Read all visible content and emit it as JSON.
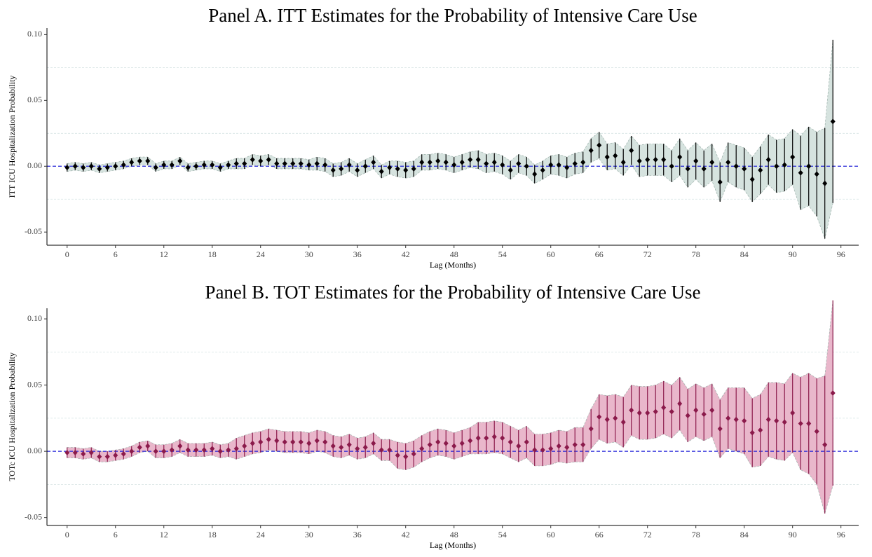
{
  "chart_data": [
    {
      "type": "errorbar",
      "title": "Panel A. ITT Estimates for the Probability of Intensive Care Use",
      "x_label": "Lag (Months)",
      "y_label": "ITT ICU Hospitalization Probability",
      "x": [
        0,
        1,
        2,
        3,
        4,
        5,
        6,
        7,
        8,
        9,
        10,
        11,
        12,
        13,
        14,
        15,
        16,
        17,
        18,
        19,
        20,
        21,
        22,
        23,
        24,
        25,
        26,
        27,
        28,
        29,
        30,
        31,
        32,
        33,
        34,
        35,
        36,
        37,
        38,
        39,
        40,
        41,
        42,
        43,
        44,
        45,
        46,
        47,
        48,
        49,
        50,
        51,
        52,
        53,
        54,
        55,
        56,
        57,
        58,
        59,
        60,
        61,
        62,
        63,
        64,
        65,
        66,
        67,
        68,
        69,
        70,
        71,
        72,
        73,
        74,
        75,
        76,
        77,
        78,
        79,
        80,
        81,
        82,
        83,
        84,
        85,
        86,
        87,
        88,
        89,
        90,
        91,
        92,
        93,
        94,
        95
      ],
      "values": [
        -0.001,
        0,
        -0.001,
        0,
        -0.002,
        -0.001,
        0,
        0.001,
        0.003,
        0.004,
        0.004,
        -0.001,
        0.001,
        0.001,
        0.004,
        -0.001,
        0,
        0.001,
        0.001,
        -0.001,
        0.001,
        0.002,
        0.002,
        0.005,
        0.004,
        0.005,
        0.002,
        0.002,
        0.002,
        0.002,
        0.001,
        0.002,
        0.001,
        -0.003,
        -0.002,
        0.001,
        -0.003,
        0,
        0.003,
        -0.004,
        -0.001,
        -0.002,
        -0.003,
        -0.002,
        0.003,
        0.003,
        0.004,
        0.003,
        0.001,
        0.003,
        0.005,
        0.005,
        0.002,
        0.003,
        0.001,
        -0.003,
        0.002,
        0,
        -0.006,
        -0.003,
        0.001,
        0.001,
        -0.001,
        0.002,
        0.003,
        0.012,
        0.016,
        0.007,
        0.008,
        0.003,
        0.012,
        0.004,
        0.005,
        0.005,
        0.005,
        0,
        0.007,
        -0.002,
        0.004,
        -0.002,
        0.003,
        -0.012,
        0.003,
        0,
        -0.002,
        -0.01,
        -0.003,
        0.005,
        0,
        0.001,
        0.007,
        -0.005,
        0,
        -0.006,
        -0.013,
        0.034
      ],
      "errors": [
        0.003,
        0.003,
        0.003,
        0.003,
        0.003,
        0.003,
        0.003,
        0.003,
        0.003,
        0.003,
        0.003,
        0.003,
        0.003,
        0.003,
        0.003,
        0.003,
        0.003,
        0.003,
        0.003,
        0.003,
        0.003,
        0.004,
        0.004,
        0.004,
        0.004,
        0.004,
        0.004,
        0.004,
        0.004,
        0.004,
        0.004,
        0.005,
        0.005,
        0.005,
        0.005,
        0.005,
        0.005,
        0.005,
        0.005,
        0.005,
        0.005,
        0.006,
        0.006,
        0.006,
        0.006,
        0.006,
        0.006,
        0.006,
        0.006,
        0.006,
        0.006,
        0.007,
        0.007,
        0.007,
        0.007,
        0.007,
        0.007,
        0.007,
        0.007,
        0.007,
        0.007,
        0.008,
        0.008,
        0.008,
        0.008,
        0.009,
        0.01,
        0.01,
        0.01,
        0.01,
        0.011,
        0.012,
        0.012,
        0.012,
        0.012,
        0.012,
        0.014,
        0.014,
        0.014,
        0.014,
        0.014,
        0.015,
        0.015,
        0.016,
        0.016,
        0.017,
        0.018,
        0.019,
        0.02,
        0.02,
        0.021,
        0.028,
        0.03,
        0.032,
        0.042,
        0.062
      ],
      "color": "#000000",
      "band_color": "#d6e3df",
      "xlim": [
        -2.5,
        98.2
      ],
      "xticks": [
        0,
        6,
        12,
        18,
        24,
        30,
        36,
        42,
        48,
        54,
        60,
        66,
        72,
        78,
        84,
        90,
        96
      ],
      "ylim": [
        -0.06,
        0.105
      ],
      "yticks": [
        -0.05,
        {
          "value": 0,
          "label": "0.00"
        },
        0.05,
        {
          "value": 0.1,
          "label": "0.10"
        }
      ],
      "minor_grid": [
        -0.025,
        0.025,
        0.075
      ],
      "reference_line": 0
    },
    {
      "type": "errorbar",
      "title": "Panel B. TOT Estimates for the Probability of Intensive Care Use",
      "x_label": "Lag (Months)",
      "y_label": "TOTc ICU Hospitalization Probability",
      "x": [
        0,
        1,
        2,
        3,
        4,
        5,
        6,
        7,
        8,
        9,
        10,
        11,
        12,
        13,
        14,
        15,
        16,
        17,
        18,
        19,
        20,
        21,
        22,
        23,
        24,
        25,
        26,
        27,
        28,
        29,
        30,
        31,
        32,
        33,
        34,
        35,
        36,
        37,
        38,
        39,
        40,
        41,
        42,
        43,
        44,
        45,
        46,
        47,
        48,
        49,
        50,
        51,
        52,
        53,
        54,
        55,
        56,
        57,
        58,
        59,
        60,
        61,
        62,
        63,
        64,
        65,
        66,
        67,
        68,
        69,
        70,
        71,
        72,
        73,
        74,
        75,
        76,
        77,
        78,
        79,
        80,
        81,
        82,
        83,
        84,
        85,
        86,
        87,
        88,
        89,
        90,
        91,
        92,
        93,
        94,
        95
      ],
      "values": [
        -0.001,
        -0.001,
        -0.002,
        -0.001,
        -0.004,
        -0.004,
        -0.003,
        -0.002,
        0,
        0.003,
        0.004,
        0,
        0,
        0.001,
        0.004,
        0.001,
        0.001,
        0.001,
        0.002,
        0,
        0.001,
        0.002,
        0.004,
        0.006,
        0.007,
        0.009,
        0.008,
        0.007,
        0.007,
        0.007,
        0.006,
        0.008,
        0.007,
        0.004,
        0.003,
        0.005,
        0.002,
        0.003,
        0.006,
        0.001,
        0.001,
        -0.003,
        -0.004,
        -0.002,
        0.002,
        0.005,
        0.007,
        0.006,
        0.004,
        0.006,
        0.008,
        0.01,
        0.01,
        0.011,
        0.01,
        0.007,
        0.004,
        0.007,
        0.001,
        0.001,
        0.002,
        0.004,
        0.003,
        0.005,
        0.005,
        0.017,
        0.026,
        0.024,
        0.025,
        0.022,
        0.031,
        0.029,
        0.029,
        0.03,
        0.033,
        0.03,
        0.036,
        0.027,
        0.031,
        0.028,
        0.031,
        0.017,
        0.025,
        0.024,
        0.023,
        0.014,
        0.016,
        0.024,
        0.023,
        0.022,
        0.029,
        0.021,
        0.021,
        0.015,
        0.005,
        0.044
      ],
      "errors": [
        0.004,
        0.004,
        0.004,
        0.004,
        0.004,
        0.004,
        0.004,
        0.004,
        0.004,
        0.004,
        0.004,
        0.005,
        0.005,
        0.005,
        0.005,
        0.005,
        0.005,
        0.005,
        0.005,
        0.005,
        0.005,
        0.008,
        0.008,
        0.008,
        0.008,
        0.008,
        0.008,
        0.008,
        0.008,
        0.008,
        0.008,
        0.008,
        0.008,
        0.008,
        0.008,
        0.008,
        0.008,
        0.008,
        0.008,
        0.008,
        0.008,
        0.01,
        0.01,
        0.01,
        0.01,
        0.01,
        0.01,
        0.01,
        0.01,
        0.01,
        0.01,
        0.012,
        0.012,
        0.012,
        0.012,
        0.012,
        0.012,
        0.012,
        0.012,
        0.012,
        0.012,
        0.012,
        0.012,
        0.013,
        0.013,
        0.015,
        0.017,
        0.018,
        0.018,
        0.019,
        0.019,
        0.02,
        0.02,
        0.02,
        0.02,
        0.02,
        0.02,
        0.02,
        0.02,
        0.02,
        0.02,
        0.022,
        0.023,
        0.024,
        0.025,
        0.026,
        0.027,
        0.028,
        0.029,
        0.029,
        0.03,
        0.035,
        0.038,
        0.04,
        0.052,
        0.07
      ],
      "color": "#8b1a4b",
      "band_color": "#e9b7cb",
      "xlim": [
        -2.5,
        98.2
      ],
      "xticks": [
        0,
        6,
        12,
        18,
        24,
        30,
        36,
        42,
        48,
        54,
        60,
        66,
        72,
        78,
        84,
        90,
        96
      ],
      "ylim": [
        -0.056,
        0.108
      ],
      "yticks": [
        -0.05,
        {
          "value": 0,
          "label": "0.00"
        },
        0.05,
        {
          "value": 0.1,
          "label": "0.10"
        }
      ],
      "minor_grid": [
        -0.025,
        0.025,
        0.075
      ],
      "reference_line": 0
    }
  ]
}
